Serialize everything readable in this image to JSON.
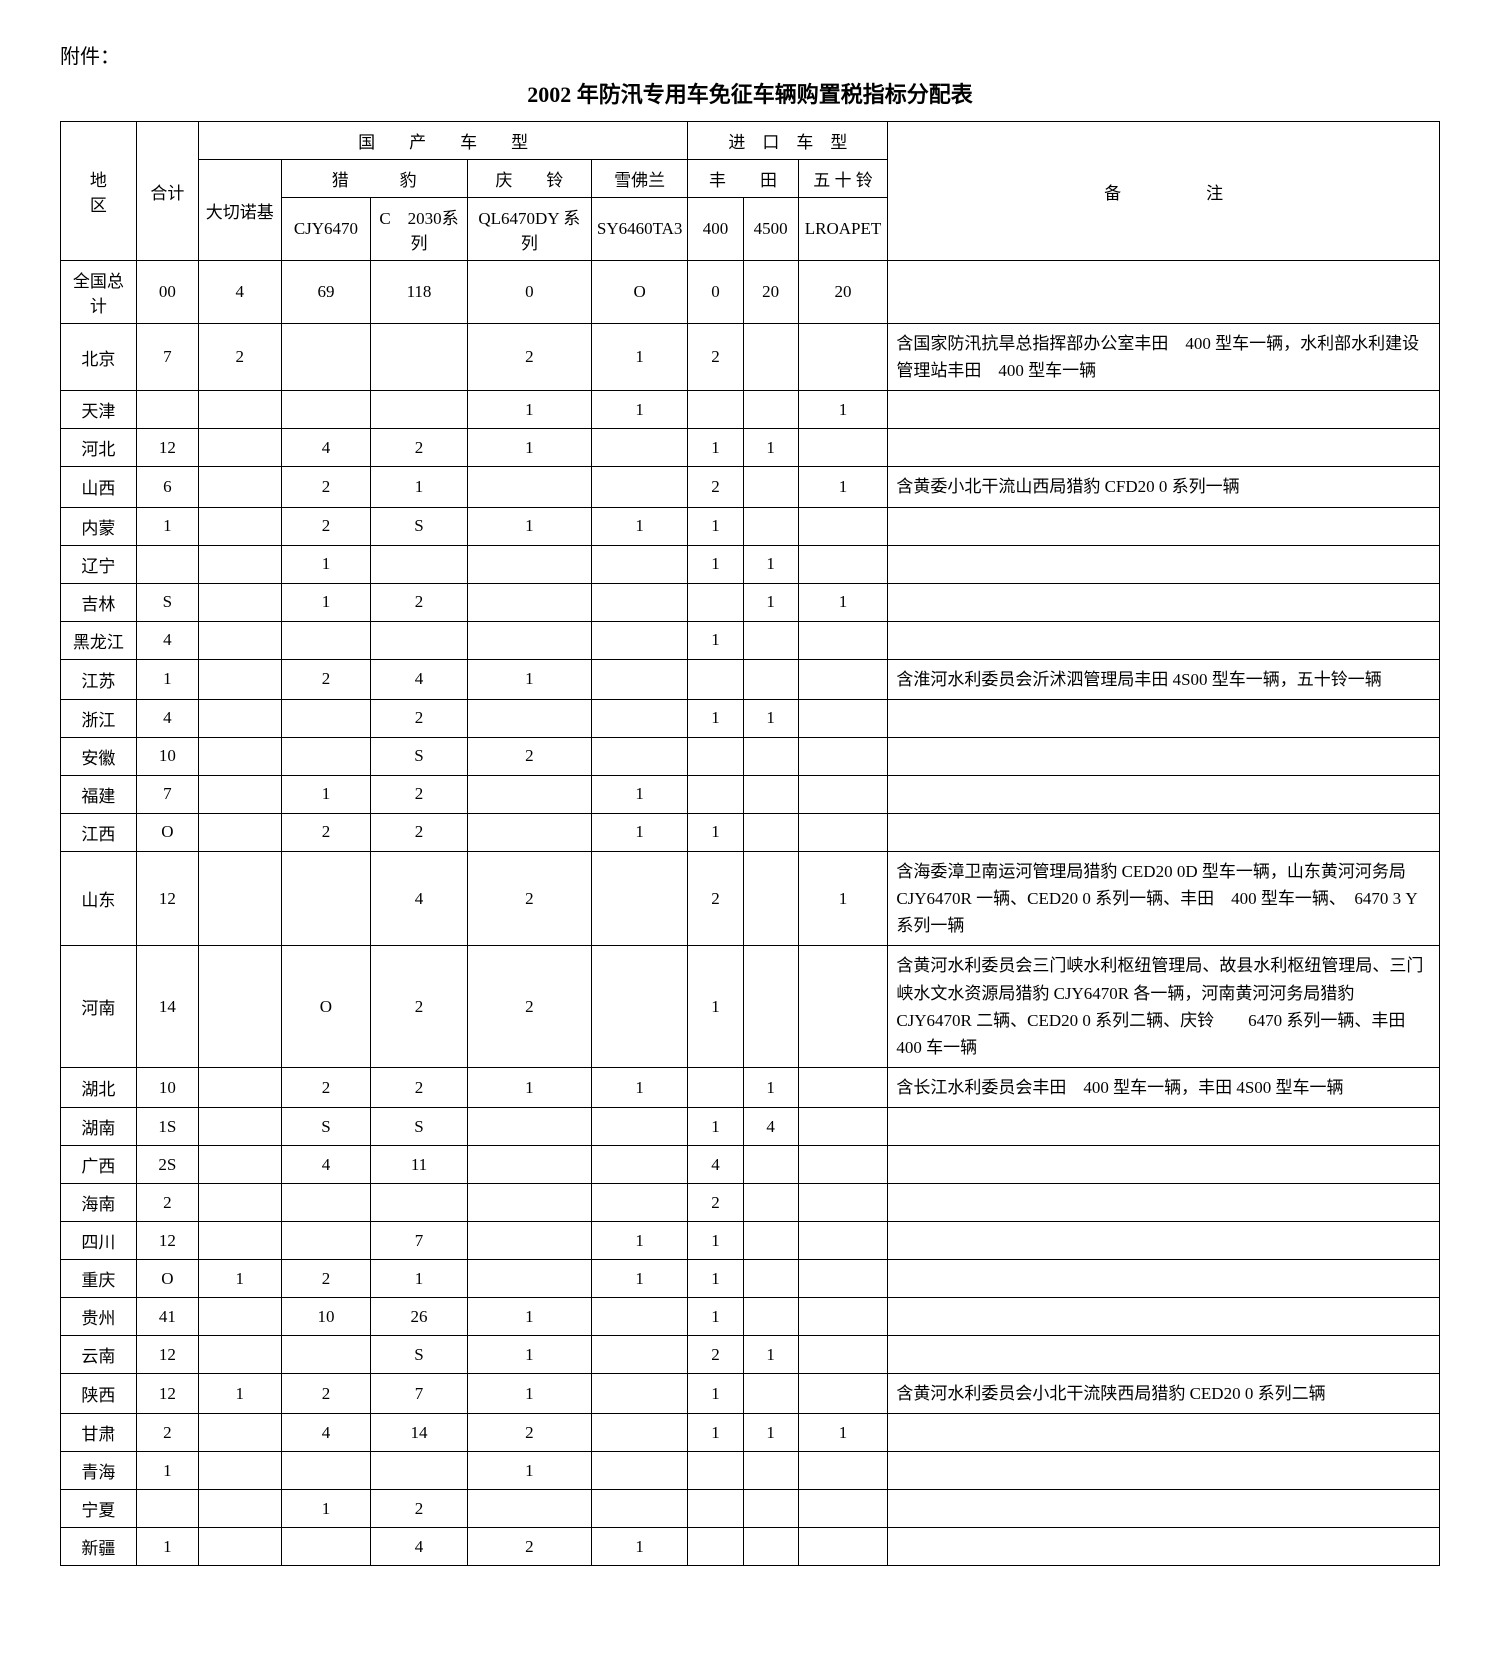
{
  "attachment_label": "附件：",
  "title": "2002 年防汛专用车免征车辆购置税指标分配表",
  "header": {
    "region": "地　　区",
    "total": "合计",
    "domestic_group": "国　　产　　车　　型",
    "import_group": "进　口　车　型",
    "remark": "备　　　　　注",
    "daqienuoji": "大切诺基",
    "liebao": "猎　　　豹",
    "qingling": "庆　　铃",
    "xuefolan": "雪佛兰",
    "fengtian": "丰　　田",
    "wushiling": "五 十 铃",
    "cjy6470": "CJY6470",
    "c2030": "C　2030系列",
    "ql6470dy": "QL6470DY 系列",
    "sy6460ta3": "SY6460TA3",
    "t400": "400",
    "t4500": "4500",
    "lroapet": "LROAPET"
  },
  "rows": [
    {
      "region": "全国总计",
      "total": "00",
      "dqnj": "4",
      "cjy": "69",
      "c2030": "118",
      "ql": "0",
      "sy": "O",
      "t400": "0",
      "t4500": "20",
      "isuzu": "20",
      "remark": ""
    },
    {
      "region": "北京",
      "total": "7",
      "dqnj": "2",
      "cjy": "",
      "c2030": "",
      "ql": "2",
      "sy": "1",
      "t400": "2",
      "t4500": "",
      "isuzu": "",
      "remark": "含国家防汛抗旱总指挥部办公室丰田　400 型车一辆，水利部水利建设管理站丰田　400 型车一辆"
    },
    {
      "region": "天津",
      "total": "",
      "dqnj": "",
      "cjy": "",
      "c2030": "",
      "ql": "1",
      "sy": "1",
      "t400": "",
      "t4500": "",
      "isuzu": "1",
      "remark": ""
    },
    {
      "region": "河北",
      "total": "12",
      "dqnj": "",
      "cjy": "4",
      "c2030": "2",
      "ql": "1",
      "sy": "",
      "t400": "1",
      "t4500": "1",
      "isuzu": "",
      "remark": ""
    },
    {
      "region": "山西",
      "total": "6",
      "dqnj": "",
      "cjy": "2",
      "c2030": "1",
      "ql": "",
      "sy": "",
      "t400": "2",
      "t4500": "",
      "isuzu": "1",
      "remark": "含黄委小北干流山西局猎豹 CFD20 0 系列一辆"
    },
    {
      "region": "内蒙",
      "total": "1",
      "dqnj": "",
      "cjy": "2",
      "c2030": "S",
      "ql": "1",
      "sy": "1",
      "t400": "1",
      "t4500": "",
      "isuzu": "",
      "remark": ""
    },
    {
      "region": "辽宁",
      "total": "",
      "dqnj": "",
      "cjy": "1",
      "c2030": "",
      "ql": "",
      "sy": "",
      "t400": "1",
      "t4500": "1",
      "isuzu": "",
      "remark": ""
    },
    {
      "region": "吉林",
      "total": "S",
      "dqnj": "",
      "cjy": "1",
      "c2030": "2",
      "ql": "",
      "sy": "",
      "t400": "",
      "t4500": "1",
      "isuzu": "1",
      "remark": ""
    },
    {
      "region": "黑龙江",
      "total": "4",
      "dqnj": "",
      "cjy": "",
      "c2030": "",
      "ql": "",
      "sy": "",
      "t400": "1",
      "t4500": "",
      "isuzu": "",
      "remark": ""
    },
    {
      "region": "江苏",
      "total": "1",
      "dqnj": "",
      "cjy": "2",
      "c2030": "4",
      "ql": "1",
      "sy": "",
      "t400": "",
      "t4500": "",
      "isuzu": "",
      "remark": "含淮河水利委员会沂沭泗管理局丰田 4S00 型车一辆，五十铃一辆"
    },
    {
      "region": "浙江",
      "total": "4",
      "dqnj": "",
      "cjy": "",
      "c2030": "2",
      "ql": "",
      "sy": "",
      "t400": "1",
      "t4500": "1",
      "isuzu": "",
      "remark": ""
    },
    {
      "region": "安徽",
      "total": "10",
      "dqnj": "",
      "cjy": "",
      "c2030": "S",
      "ql": "2",
      "sy": "",
      "t400": "",
      "t4500": "",
      "isuzu": "",
      "remark": ""
    },
    {
      "region": "福建",
      "total": "7",
      "dqnj": "",
      "cjy": "1",
      "c2030": "2",
      "ql": "",
      "sy": "1",
      "t400": "",
      "t4500": "",
      "isuzu": "",
      "remark": ""
    },
    {
      "region": "江西",
      "total": "O",
      "dqnj": "",
      "cjy": "2",
      "c2030": "2",
      "ql": "",
      "sy": "1",
      "t400": "1",
      "t4500": "",
      "isuzu": "",
      "remark": ""
    },
    {
      "region": "山东",
      "total": "12",
      "dqnj": "",
      "cjy": "",
      "c2030": "4",
      "ql": "2",
      "sy": "",
      "t400": "2",
      "t4500": "",
      "isuzu": "1",
      "remark": "含海委漳卫南运河管理局猎豹 CED20 0D 型车一辆，山东黄河河务局 CJY6470R 一辆、CED20 0 系列一辆、丰田　400 型车一辆、　6470 3 Y 系列一辆"
    },
    {
      "region": "河南",
      "total": "14",
      "dqnj": "",
      "cjy": "O",
      "c2030": "2",
      "ql": "2",
      "sy": "",
      "t400": "1",
      "t4500": "",
      "isuzu": "",
      "remark": "含黄河水利委员会三门峡水利枢纽管理局、故县水利枢纽管理局、三门峡水文水资源局猎豹 CJY6470R 各一辆，河南黄河河务局猎豹 CJY6470R 二辆、CED20 0 系列二辆、庆铃　　6470 系列一辆、丰田 400 车一辆"
    },
    {
      "region": "湖北",
      "total": "10",
      "dqnj": "",
      "cjy": "2",
      "c2030": "2",
      "ql": "1",
      "sy": "1",
      "t400": "",
      "t4500": "1",
      "isuzu": "",
      "remark": "含长江水利委员会丰田　400 型车一辆，丰田 4S00 型车一辆"
    },
    {
      "region": "湖南",
      "total": "1S",
      "dqnj": "",
      "cjy": "S",
      "c2030": "S",
      "ql": "",
      "sy": "",
      "t400": "1",
      "t4500": "4",
      "isuzu": "",
      "remark": ""
    },
    {
      "region": "广西",
      "total": "2S",
      "dqnj": "",
      "cjy": "4",
      "c2030": "11",
      "ql": "",
      "sy": "",
      "t400": "4",
      "t4500": "",
      "isuzu": "",
      "remark": ""
    },
    {
      "region": "海南",
      "total": "2",
      "dqnj": "",
      "cjy": "",
      "c2030": "",
      "ql": "",
      "sy": "",
      "t400": "2",
      "t4500": "",
      "isuzu": "",
      "remark": ""
    },
    {
      "region": "四川",
      "total": "12",
      "dqnj": "",
      "cjy": "",
      "c2030": "7",
      "ql": "",
      "sy": "1",
      "t400": "1",
      "t4500": "",
      "isuzu": "",
      "remark": ""
    },
    {
      "region": "重庆",
      "total": "O",
      "dqnj": "1",
      "cjy": "2",
      "c2030": "1",
      "ql": "",
      "sy": "1",
      "t400": "1",
      "t4500": "",
      "isuzu": "",
      "remark": ""
    },
    {
      "region": "贵州",
      "total": "41",
      "dqnj": "",
      "cjy": "10",
      "c2030": "26",
      "ql": "1",
      "sy": "",
      "t400": "1",
      "t4500": "",
      "isuzu": "",
      "remark": ""
    },
    {
      "region": "云南",
      "total": "12",
      "dqnj": "",
      "cjy": "",
      "c2030": "S",
      "ql": "1",
      "sy": "",
      "t400": "2",
      "t4500": "1",
      "isuzu": "",
      "remark": ""
    },
    {
      "region": "陕西",
      "total": "12",
      "dqnj": "1",
      "cjy": "2",
      "c2030": "7",
      "ql": "1",
      "sy": "",
      "t400": "1",
      "t4500": "",
      "isuzu": "",
      "remark": "含黄河水利委员会小北干流陕西局猎豹 CED20 0 系列二辆"
    },
    {
      "region": "甘肃",
      "total": "2",
      "dqnj": "",
      "cjy": "4",
      "c2030": "14",
      "ql": "2",
      "sy": "",
      "t400": "1",
      "t4500": "1",
      "isuzu": "1",
      "remark": ""
    },
    {
      "region": "青海",
      "total": "1",
      "dqnj": "",
      "cjy": "",
      "c2030": "",
      "ql": "1",
      "sy": "",
      "t400": "",
      "t4500": "",
      "isuzu": "",
      "remark": ""
    },
    {
      "region": "宁夏",
      "total": "",
      "dqnj": "",
      "cjy": "1",
      "c2030": "2",
      "ql": "",
      "sy": "",
      "t400": "",
      "t4500": "",
      "isuzu": "",
      "remark": ""
    },
    {
      "region": "新疆",
      "total": "1",
      "dqnj": "",
      "cjy": "",
      "c2030": "4",
      "ql": "2",
      "sy": "1",
      "t400": "",
      "t4500": "",
      "isuzu": "",
      "remark": ""
    }
  ]
}
